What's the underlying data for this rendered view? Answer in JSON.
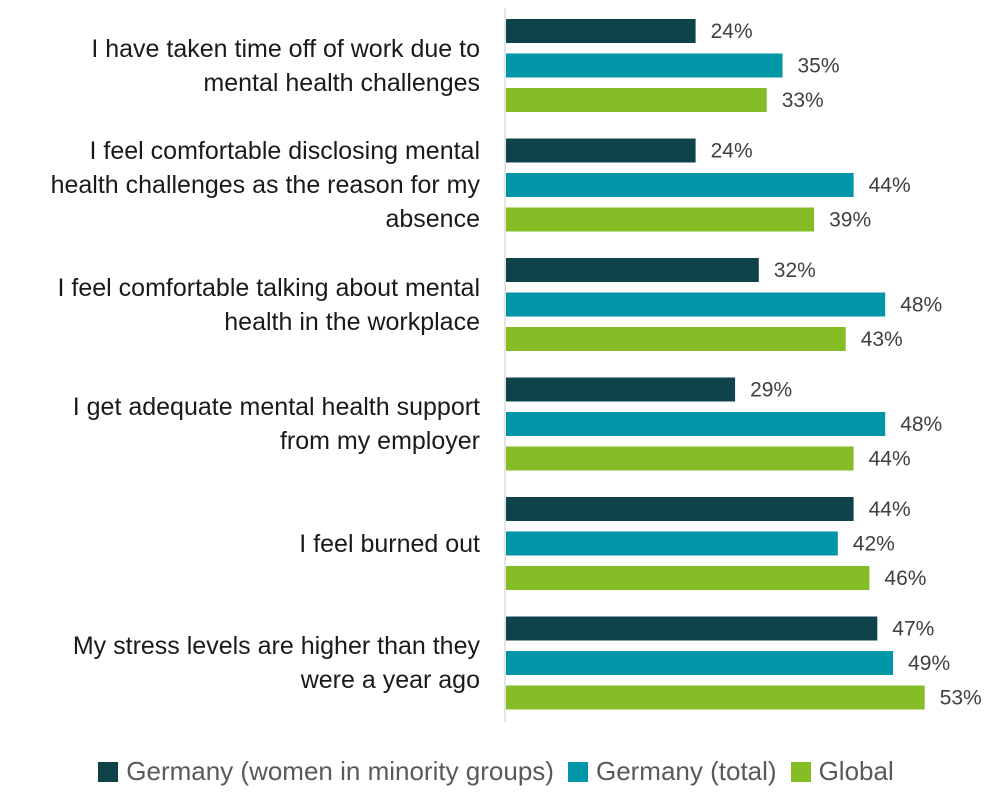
{
  "chart_data": {
    "type": "bar",
    "orientation": "horizontal",
    "categories": [
      [
        "I have taken time off of work due to",
        "mental health challenges"
      ],
      [
        "I feel comfortable disclosing mental",
        "health challenges as the reason for my",
        "absence"
      ],
      [
        "I feel comfortable talking about mental",
        "health in the workplace"
      ],
      [
        "I get adequate mental health support",
        "from my employer"
      ],
      [
        "I feel burned out"
      ],
      [
        "My stress levels are higher than they",
        "were a year ago"
      ]
    ],
    "series": [
      {
        "name": "Germany (women in minority groups)",
        "color": "#0f434a",
        "values": [
          24,
          24,
          32,
          29,
          44,
          47
        ],
        "labels": [
          "24%",
          "24%",
          "32%",
          "29%",
          "44%",
          "47%"
        ]
      },
      {
        "name": "Germany (total)",
        "color": "#0096a8",
        "values": [
          35,
          44,
          48,
          48,
          42,
          49
        ],
        "labels": [
          "35%",
          "44%",
          "48%",
          "48%",
          "42%",
          "49%"
        ]
      },
      {
        "name": "Global",
        "color": "#86bc25",
        "values": [
          33,
          39,
          43,
          44,
          46,
          53
        ],
        "labels": [
          "33%",
          "39%",
          "43%",
          "44%",
          "46%",
          "53%"
        ]
      }
    ],
    "xlim": [
      0,
      100
    ],
    "legend_position": "bottom",
    "grid": false
  }
}
